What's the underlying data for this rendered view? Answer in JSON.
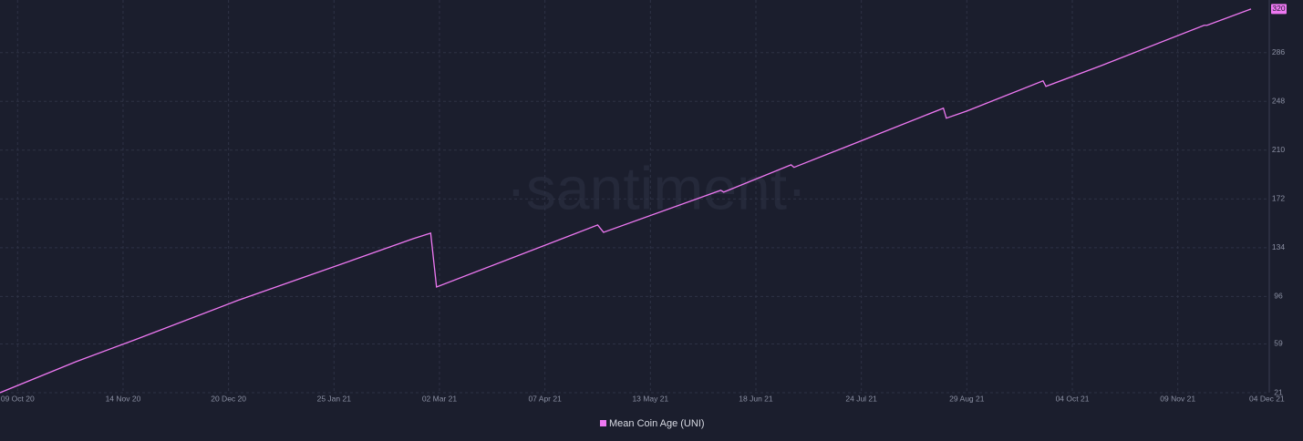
{
  "chart_data": {
    "type": "line",
    "watermark": "·santiment·",
    "x": [
      "2020-10-03",
      "2020-10-29",
      "2020-11-18",
      "2020-12-23",
      "2021-01-31",
      "2021-02-21",
      "2021-02-27",
      "2021-03-01",
      "2021-04-25",
      "2021-04-27",
      "2021-06-06",
      "2021-06-07",
      "2021-06-30",
      "2021-07-01",
      "2021-07-19",
      "2021-08-21",
      "2021-08-22",
      "2021-08-29",
      "2021-09-24",
      "2021-09-25",
      "2021-10-14",
      "2021-11-18",
      "2021-11-19",
      "2021-12-04"
    ],
    "series": [
      {
        "name": "Mean Coin Age (UNI)",
        "color": "#ee78f2",
        "values": [
          21,
          45.2,
          62.2,
          92.8,
          124,
          141,
          145.3,
          103.4,
          151.7,
          146,
          178.7,
          177.3,
          198.6,
          196.6,
          212.8,
          242.7,
          234.9,
          240.5,
          264,
          259.7,
          276,
          307.3,
          307.3,
          320
        ],
        "value_labels": [
          null,
          null,
          null,
          null,
          null,
          null,
          null,
          null,
          null,
          null,
          null,
          null,
          null,
          null,
          null,
          null,
          null,
          null,
          null,
          null,
          null,
          null,
          null,
          "320"
        ]
      }
    ],
    "xlim": [
      "2020-10-03",
      "2021-12-04"
    ],
    "xticks": [
      {
        "value": "2020-10-09",
        "label": "09 Oct 20"
      },
      {
        "value": "2020-11-14",
        "label": "14 Nov 20"
      },
      {
        "value": "2020-12-20",
        "label": "20 Dec 20"
      },
      {
        "value": "2021-01-25",
        "label": "25 Jan 21"
      },
      {
        "value": "2021-03-02",
        "label": "02 Mar 21"
      },
      {
        "value": "2021-04-07",
        "label": "07 Apr 21"
      },
      {
        "value": "2021-05-13",
        "label": "13 May 21"
      },
      {
        "value": "2021-06-18",
        "label": "18 Jun 21"
      },
      {
        "value": "2021-07-24",
        "label": "24 Jul 21"
      },
      {
        "value": "2021-08-29",
        "label": "29 Aug 21"
      },
      {
        "value": "2021-10-04",
        "label": "04 Oct 21"
      },
      {
        "value": "2021-11-09",
        "label": "09 Nov 21"
      },
      {
        "value": "2021-12-04",
        "label": "04 Dec 21"
      }
    ],
    "ylim": [
      21,
      327
    ],
    "yticks": [
      21,
      59,
      96,
      134,
      172,
      210,
      248,
      286
    ],
    "grid": true
  }
}
